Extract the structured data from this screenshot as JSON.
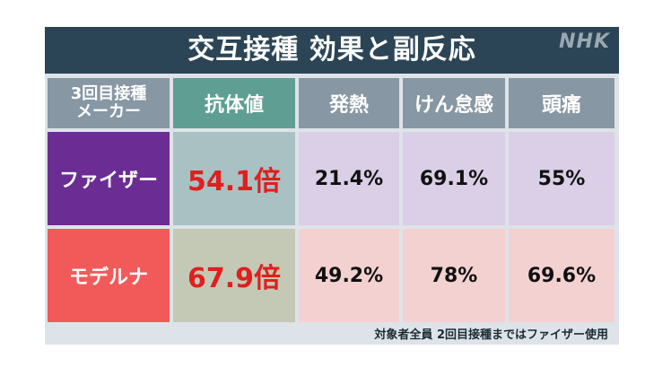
{
  "title": "交互接種 効果と副反応",
  "logo": "NHK",
  "table": {
    "headers": {
      "maker_line1": "3回目接種",
      "maker_line2": "メーカー",
      "cols": [
        "抗体値",
        "発熱",
        "けん怠感",
        "頭痛"
      ]
    },
    "rows": [
      {
        "maker": "ファイザー",
        "values": [
          "54.1倍",
          "21.4%",
          "69.1%",
          "55%"
        ]
      },
      {
        "maker": "モデルナ",
        "values": [
          "67.9倍",
          "49.2%",
          "78%",
          "69.6%"
        ]
      }
    ]
  },
  "footnote": "対象者全員 2回目接種まではファイザー使用",
  "colors": {
    "title_bar": "#2b4556",
    "header": "#8797a3",
    "antibody_header": "#5f9e93",
    "pfizer": "#6b2c94",
    "moderna": "#f25a5a",
    "antibody_text": "#e01f1f"
  }
}
